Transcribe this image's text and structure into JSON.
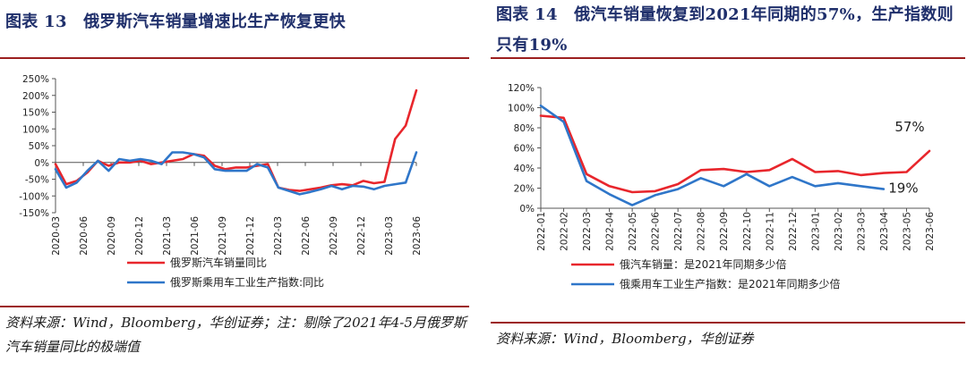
{
  "left": {
    "title": "图表 13　俄罗斯汽车销量增速比生产恢复更快",
    "source": "资料来源：Wind，Bloomberg，华创证券；注：剔除了2021年4-5月俄罗斯汽车销量同比的极端值",
    "chart_data": {
      "type": "line",
      "x_labels": [
        "2020-03",
        "2020-06",
        "2020-09",
        "2020-12",
        "2021-03",
        "2021-06",
        "2021-09",
        "2021-12",
        "2022-03",
        "2022-06",
        "2022-09",
        "2022-12",
        "2023-03",
        "2023-06"
      ],
      "ylim": [
        -150,
        250
      ],
      "y_ticks": [
        -150,
        -100,
        -50,
        0,
        50,
        100,
        150,
        200,
        250
      ],
      "y_tick_labels": [
        "-150%",
        "-100%",
        "-50%",
        "0%",
        "50%",
        "100%",
        "150%",
        "200%",
        "250%"
      ],
      "legend_position": "bottom",
      "series": [
        {
          "name": "俄罗斯汽车销量同比",
          "color": "#e8262c",
          "values": [
            -5,
            -65,
            -55,
            -30,
            5,
            -10,
            0,
            0,
            5,
            -5,
            0,
            5,
            10,
            25,
            20,
            -10,
            -20,
            -15,
            -15,
            -10,
            -5,
            -75,
            -82,
            -85,
            -80,
            -75,
            -68,
            -65,
            -68,
            -55,
            -62,
            -58,
            70,
            110,
            215
          ]
        },
        {
          "name": "俄罗斯乘用车工业生产指数:同比",
          "color": "#2f76c9",
          "values": [
            -20,
            -75,
            -60,
            -25,
            5,
            -25,
            10,
            5,
            10,
            5,
            -5,
            30,
            30,
            25,
            15,
            -20,
            -25,
            -25,
            -25,
            -5,
            -15,
            -75,
            -85,
            -95,
            -88,
            -80,
            -70,
            -80,
            -70,
            -72,
            -80,
            -70,
            -65,
            -60,
            30
          ]
        }
      ]
    }
  },
  "right": {
    "title": "图表 14　俄汽车销量恢复到2021年同期的57%，生产指数则只有19%",
    "source": "资料来源：Wind，Bloomberg，华创证券",
    "chart_data": {
      "type": "line",
      "x_labels": [
        "2022-01",
        "2022-02",
        "2022-03",
        "2022-04",
        "2022-05",
        "2022-06",
        "2022-07",
        "2022-08",
        "2022-09",
        "2022-10",
        "2022-11",
        "2022-12",
        "2023-01",
        "2023-02",
        "2023-03",
        "2023-04",
        "2023-05",
        "2023-06"
      ],
      "ylim": [
        0,
        120
      ],
      "y_ticks": [
        0,
        20,
        40,
        60,
        80,
        100,
        120
      ],
      "y_tick_labels": [
        "0%",
        "20%",
        "40%",
        "60%",
        "80%",
        "100%",
        "120%"
      ],
      "legend_position": "bottom",
      "annotations": [
        {
          "text": "57%",
          "series": 0,
          "index": 17
        },
        {
          "text": "19%",
          "series": 1,
          "index": 15
        }
      ],
      "series": [
        {
          "name": "俄汽车销量：是2021年同期多少倍",
          "color": "#e8262c",
          "values": [
            92,
            90,
            34,
            22,
            16,
            17,
            24,
            38,
            39,
            36,
            38,
            49,
            36,
            37,
            33,
            35,
            36,
            57
          ]
        },
        {
          "name": "俄乘用车工业生产指数：是2021年同期多少倍",
          "color": "#2f76c9",
          "values": [
            102,
            86,
            27,
            14,
            3,
            13,
            19,
            30,
            22,
            34,
            22,
            31,
            22,
            25,
            22,
            19,
            null,
            null
          ]
        }
      ]
    }
  }
}
